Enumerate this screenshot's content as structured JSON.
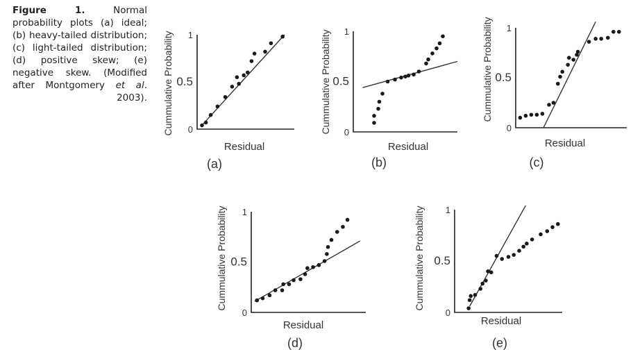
{
  "caption": {
    "label": "Figure 1.",
    "text": "Normal probability plots (a) ideal; (b) heavy-tailed distribution; (c) light-tailed distribution; (d) positive skew; (e) negative skew. (Modified after Montgomery ",
    "italic": "et al",
    "tail": ". 2003)."
  },
  "chart_data": [
    {
      "type": "scatter",
      "panel_label": "(a)",
      "title": "ideal",
      "xlabel": "Residual",
      "ylabel": "Cummulative Probability",
      "yticks": [
        "0",
        "0.5",
        "1"
      ],
      "ylim": [
        0,
        1
      ],
      "xlim": [
        0,
        1
      ],
      "points": [
        [
          0.05,
          0.04
        ],
        [
          0.09,
          0.07
        ],
        [
          0.14,
          0.15
        ],
        [
          0.21,
          0.24
        ],
        [
          0.29,
          0.34
        ],
        [
          0.36,
          0.45
        ],
        [
          0.41,
          0.55
        ],
        [
          0.43,
          0.48
        ],
        [
          0.48,
          0.57
        ],
        [
          0.52,
          0.6
        ],
        [
          0.56,
          0.72
        ],
        [
          0.59,
          0.8
        ],
        [
          0.7,
          0.82
        ],
        [
          0.76,
          0.91
        ],
        [
          0.88,
          0.98
        ]
      ],
      "fit_line": [
        [
          0.04,
          0.03
        ],
        [
          0.9,
          1.0
        ]
      ]
    },
    {
      "type": "scatter",
      "panel_label": "(b)",
      "title": "heavy-tailed distribution",
      "xlabel": "Residual",
      "ylabel": "Cummulative Probability",
      "yticks": [
        "0",
        "0.5",
        "1"
      ],
      "ylim": [
        0,
        1
      ],
      "xlim": [
        0,
        1
      ],
      "points": [
        [
          0.2,
          0.09
        ],
        [
          0.2,
          0.16
        ],
        [
          0.24,
          0.23
        ],
        [
          0.25,
          0.3
        ],
        [
          0.28,
          0.38
        ],
        [
          0.33,
          0.5
        ],
        [
          0.4,
          0.52
        ],
        [
          0.46,
          0.54
        ],
        [
          0.5,
          0.55
        ],
        [
          0.53,
          0.56
        ],
        [
          0.58,
          0.57
        ],
        [
          0.63,
          0.6
        ],
        [
          0.7,
          0.68
        ],
        [
          0.72,
          0.72
        ],
        [
          0.76,
          0.78
        ],
        [
          0.8,
          0.83
        ],
        [
          0.83,
          0.88
        ],
        [
          0.86,
          0.95
        ]
      ],
      "fit_line": [
        [
          0.09,
          0.44
        ],
        [
          1.0,
          0.7
        ]
      ]
    },
    {
      "type": "scatter",
      "panel_label": "(c)",
      "title": "light-tailed distribution",
      "xlabel": "Residual",
      "ylabel": "Cummulative Probability",
      "yticks": [
        "0",
        "0.5",
        "1"
      ],
      "ylim": [
        0,
        1
      ],
      "xlim": [
        0,
        1
      ],
      "points": [
        [
          0.04,
          0.1
        ],
        [
          0.09,
          0.12
        ],
        [
          0.14,
          0.13
        ],
        [
          0.19,
          0.13
        ],
        [
          0.24,
          0.14
        ],
        [
          0.3,
          0.23
        ],
        [
          0.34,
          0.25
        ],
        [
          0.38,
          0.44
        ],
        [
          0.4,
          0.51
        ],
        [
          0.42,
          0.56
        ],
        [
          0.47,
          0.63
        ],
        [
          0.48,
          0.7
        ],
        [
          0.52,
          0.68
        ],
        [
          0.55,
          0.73
        ],
        [
          0.56,
          0.76
        ],
        [
          0.66,
          0.86
        ],
        [
          0.72,
          0.89
        ],
        [
          0.77,
          0.89
        ],
        [
          0.83,
          0.9
        ],
        [
          0.88,
          0.96
        ],
        [
          0.93,
          0.96
        ]
      ],
      "fit_line": [
        [
          0.25,
          0.0
        ],
        [
          0.72,
          1.06
        ]
      ]
    },
    {
      "type": "scatter",
      "panel_label": "(d)",
      "title": "positive skew",
      "xlabel": "Residual",
      "ylabel": "Cummulative Probability",
      "yticks": [
        "0",
        "0.5",
        "1"
      ],
      "ylim": [
        0,
        1
      ],
      "xlim": [
        0,
        1
      ],
      "points": [
        [
          0.05,
          0.12
        ],
        [
          0.1,
          0.14
        ],
        [
          0.16,
          0.17
        ],
        [
          0.21,
          0.22
        ],
        [
          0.27,
          0.22
        ],
        [
          0.28,
          0.28
        ],
        [
          0.33,
          0.28
        ],
        [
          0.37,
          0.32
        ],
        [
          0.43,
          0.33
        ],
        [
          0.47,
          0.38
        ],
        [
          0.49,
          0.44
        ],
        [
          0.54,
          0.45
        ],
        [
          0.59,
          0.47
        ],
        [
          0.64,
          0.51
        ],
        [
          0.66,
          0.58
        ],
        [
          0.67,
          0.65
        ],
        [
          0.7,
          0.72
        ],
        [
          0.75,
          0.8
        ],
        [
          0.8,
          0.85
        ],
        [
          0.84,
          0.92
        ]
      ],
      "fit_line": [
        [
          0.03,
          0.11
        ],
        [
          0.95,
          0.71
        ]
      ]
    },
    {
      "type": "scatter",
      "panel_label": "(e)",
      "title": "negative skew",
      "xlabel": "Residual",
      "ylabel": "Cummulative Probability",
      "yticks": [
        "0",
        "0.5",
        "1"
      ],
      "ylim": [
        0,
        1
      ],
      "xlim": [
        0,
        1
      ],
      "points": [
        [
          0.13,
          0.04
        ],
        [
          0.14,
          0.12
        ],
        [
          0.15,
          0.16
        ],
        [
          0.19,
          0.17
        ],
        [
          0.24,
          0.23
        ],
        [
          0.26,
          0.28
        ],
        [
          0.29,
          0.31
        ],
        [
          0.31,
          0.4
        ],
        [
          0.34,
          0.39
        ],
        [
          0.39,
          0.55
        ],
        [
          0.44,
          0.52
        ],
        [
          0.5,
          0.54
        ],
        [
          0.55,
          0.56
        ],
        [
          0.6,
          0.6
        ],
        [
          0.64,
          0.64
        ],
        [
          0.67,
          0.67
        ],
        [
          0.72,
          0.71
        ],
        [
          0.8,
          0.76
        ],
        [
          0.86,
          0.79
        ],
        [
          0.91,
          0.83
        ],
        [
          0.96,
          0.86
        ]
      ],
      "fit_line": [
        [
          0.14,
          0.06
        ],
        [
          0.66,
          1.04
        ]
      ]
    }
  ]
}
